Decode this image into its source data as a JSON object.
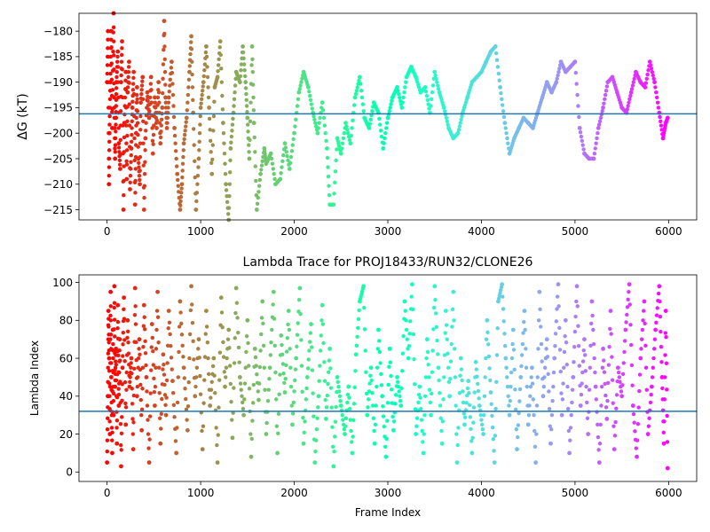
{
  "chart_data": [
    {
      "type": "scatter",
      "title": "",
      "xlabel": "",
      "ylabel": "ΔG (kT)",
      "xlim": [
        -300,
        6300
      ],
      "ylim": [
        -217,
        -176.5
      ],
      "xticks": [
        0,
        1000,
        2000,
        3000,
        4000,
        5000,
        6000
      ],
      "xtick_labels": [
        "0",
        "1000",
        "2000",
        "3000",
        "4000",
        "5000",
        "6000"
      ],
      "yticks": [
        -215,
        -210,
        -205,
        -200,
        -195,
        -190,
        -185,
        -180
      ],
      "ytick_labels": [
        "−215",
        "−210",
        "−205",
        "−200",
        "−195",
        "−190",
        "−185",
        "−180"
      ],
      "hline": -196.2,
      "hline_color": "#1f77b4",
      "colormap": "rainbow, reversed over frame index (red at frame 0, violet at frame 6000)",
      "points": [
        [
          0,
          -190
        ],
        [
          10,
          -180
        ],
        [
          20,
          -210
        ],
        [
          25,
          -200
        ],
        [
          35,
          -190
        ],
        [
          45,
          -180
        ],
        [
          55,
          -199
        ],
        [
          70,
          -176.5
        ],
        [
          75,
          -193
        ],
        [
          85,
          -205
        ],
        [
          95,
          -197
        ],
        [
          100,
          -190
        ],
        [
          115,
          -184
        ],
        [
          125,
          -202
        ],
        [
          140,
          -207
        ],
        [
          150,
          -190
        ],
        [
          160,
          -182
        ],
        [
          175,
          -215
        ],
        [
          185,
          -198
        ],
        [
          200,
          -188
        ],
        [
          210,
          -209
        ],
        [
          220,
          -192
        ],
        [
          235,
          -186
        ],
        [
          245,
          -211
        ],
        [
          260,
          -203
        ],
        [
          270,
          -195
        ],
        [
          285,
          -188
        ],
        [
          300,
          -214
        ],
        [
          310,
          -200
        ],
        [
          320,
          -191
        ],
        [
          335,
          -205
        ],
        [
          350,
          -210
        ],
        [
          360,
          -194
        ],
        [
          380,
          -189
        ],
        [
          395,
          -215
        ],
        [
          410,
          -201
        ],
        [
          430,
          -192
        ],
        [
          450,
          -197
        ],
        [
          470,
          -189
        ],
        [
          490,
          -204
        ],
        [
          510,
          -193
        ],
        [
          530,
          -199
        ],
        [
          550,
          -190
        ],
        [
          570,
          -202
        ],
        [
          590,
          -195
        ],
        [
          610,
          -178
        ],
        [
          625,
          -193
        ],
        [
          640,
          -199
        ],
        [
          660,
          -193
        ],
        [
          690,
          -186
        ],
        [
          720,
          -199
        ],
        [
          750,
          -208
        ],
        [
          780,
          -215
        ],
        [
          800,
          -210
        ],
        [
          820,
          -202
        ],
        [
          850,
          -197
        ],
        [
          880,
          -188
        ],
        [
          900,
          -181
        ],
        [
          920,
          -196
        ],
        [
          950,
          -215
        ],
        [
          980,
          -205
        ],
        [
          1000,
          -195
        ],
        [
          1030,
          -190
        ],
        [
          1060,
          -183
        ],
        [
          1090,
          -195
        ],
        [
          1120,
          -208
        ],
        [
          1150,
          -191
        ],
        [
          1180,
          -189
        ],
        [
          1210,
          -182
        ],
        [
          1240,
          -198
        ],
        [
          1270,
          -210
        ],
        [
          1300,
          -217
        ],
        [
          1320,
          -203
        ],
        [
          1350,
          -196
        ],
        [
          1380,
          -188
        ],
        [
          1420,
          -190
        ],
        [
          1450,
          -183
        ],
        [
          1480,
          -190
        ],
        [
          1500,
          -197
        ],
        [
          1520,
          -205
        ],
        [
          1550,
          -183
        ],
        [
          1570,
          -198
        ],
        [
          1600,
          -215
        ],
        [
          1640,
          -208
        ],
        [
          1680,
          -203
        ],
        [
          1700,
          -206
        ],
        [
          1750,
          -204
        ],
        [
          1800,
          -210
        ],
        [
          1850,
          -209
        ],
        [
          1900,
          -202
        ],
        [
          1950,
          -207
        ],
        [
          2000,
          -200
        ],
        [
          2050,
          -192
        ],
        [
          2100,
          -188
        ],
        [
          2150,
          -191
        ],
        [
          2200,
          -196
        ],
        [
          2250,
          -200
        ],
        [
          2300,
          -194
        ],
        [
          2350,
          -203
        ],
        [
          2380,
          -214
        ],
        [
          2420,
          -214
        ],
        [
          2460,
          -201
        ],
        [
          2500,
          -204
        ],
        [
          2550,
          -198
        ],
        [
          2600,
          -202
        ],
        [
          2650,
          -193
        ],
        [
          2700,
          -189
        ],
        [
          2750,
          -197
        ],
        [
          2800,
          -199
        ],
        [
          2850,
          -194
        ],
        [
          2900,
          -196
        ],
        [
          2950,
          -203
        ],
        [
          3000,
          -197
        ],
        [
          3050,
          -193
        ],
        [
          3100,
          -191
        ],
        [
          3150,
          -195
        ],
        [
          3200,
          -189
        ],
        [
          3250,
          -187
        ],
        [
          3300,
          -189
        ],
        [
          3350,
          -192
        ],
        [
          3400,
          -191
        ],
        [
          3450,
          -196
        ],
        [
          3500,
          -188
        ],
        [
          3550,
          -192
        ],
        [
          3600,
          -195
        ],
        [
          3650,
          -199
        ],
        [
          3700,
          -201
        ],
        [
          3750,
          -200
        ],
        [
          3800,
          -196
        ],
        [
          3850,
          -193
        ],
        [
          3900,
          -190
        ],
        [
          3950,
          -189
        ],
        [
          4000,
          -188
        ],
        [
          4050,
          -186
        ],
        [
          4100,
          -184
        ],
        [
          4150,
          -183
        ],
        [
          4200,
          -191
        ],
        [
          4250,
          -198
        ],
        [
          4300,
          -204
        ],
        [
          4350,
          -201
        ],
        [
          4400,
          -199
        ],
        [
          4450,
          -197
        ],
        [
          4500,
          -198
        ],
        [
          4550,
          -199
        ],
        [
          4600,
          -196
        ],
        [
          4650,
          -193
        ],
        [
          4700,
          -190
        ],
        [
          4750,
          -192
        ],
        [
          4800,
          -190
        ],
        [
          4850,
          -186
        ],
        [
          4900,
          -188
        ],
        [
          4950,
          -187
        ],
        [
          5000,
          -186
        ],
        [
          5050,
          -199
        ],
        [
          5100,
          -204
        ],
        [
          5150,
          -205
        ],
        [
          5200,
          -205
        ],
        [
          5250,
          -199
        ],
        [
          5300,
          -195
        ],
        [
          5350,
          -190
        ],
        [
          5400,
          -189
        ],
        [
          5450,
          -192
        ],
        [
          5500,
          -195
        ],
        [
          5550,
          -196
        ],
        [
          5600,
          -192
        ],
        [
          5650,
          -188
        ],
        [
          5700,
          -190
        ],
        [
          5750,
          -191
        ],
        [
          5800,
          -186
        ],
        [
          5850,
          -190
        ],
        [
          5900,
          -196
        ],
        [
          5940,
          -201
        ],
        [
          5970,
          -198
        ],
        [
          5990,
          -197
        ]
      ]
    },
    {
      "type": "scatter",
      "title": "Lambda Trace for PROJ18433/RUN32/CLONE26",
      "xlabel": "Frame Index",
      "ylabel": "Lambda Index",
      "xlim": [
        -300,
        6300
      ],
      "ylim": [
        -5,
        104
      ],
      "xticks": [
        0,
        1000,
        2000,
        3000,
        4000,
        5000,
        6000
      ],
      "xtick_labels": [
        "0",
        "1000",
        "2000",
        "3000",
        "4000",
        "5000",
        "6000"
      ],
      "yticks": [
        0,
        20,
        40,
        60,
        80,
        100
      ],
      "ytick_labels": [
        "0",
        "20",
        "40",
        "60",
        "80",
        "100"
      ],
      "hline": 32,
      "hline_color": "#1f77b4",
      "colormap": "rainbow, reversed over frame index (red at frame 0, violet at frame 6000)",
      "points": [
        [
          0,
          5
        ],
        [
          8,
          40
        ],
        [
          15,
          85
        ],
        [
          22,
          60
        ],
        [
          30,
          20
        ],
        [
          38,
          95
        ],
        [
          45,
          50
        ],
        [
          55,
          10
        ],
        [
          62,
          75
        ],
        [
          70,
          30
        ],
        [
          78,
          98
        ],
        [
          85,
          45
        ],
        [
          95,
          65
        ],
        [
          105,
          15
        ],
        [
          115,
          88
        ],
        [
          125,
          35
        ],
        [
          135,
          70
        ],
        [
          150,
          3
        ],
        [
          165,
          55
        ],
        [
          180,
          92
        ],
        [
          200,
          25
        ],
        [
          220,
          80
        ],
        [
          240,
          45
        ],
        [
          260,
          60
        ],
        [
          280,
          12
        ],
        [
          300,
          97
        ],
        [
          320,
          40
        ],
        [
          345,
          70
        ],
        [
          370,
          22
        ],
        [
          395,
          88
        ],
        [
          420,
          50
        ],
        [
          450,
          5
        ],
        [
          480,
          78
        ],
        [
          510,
          35
        ],
        [
          540,
          95
        ],
        [
          570,
          15
        ],
        [
          600,
          62
        ],
        [
          630,
          30
        ],
        [
          660,
          85
        ],
        [
          700,
          48
        ],
        [
          740,
          10
        ],
        [
          780,
          90
        ],
        [
          820,
          55
        ],
        [
          860,
          22
        ],
        [
          900,
          98
        ],
        [
          940,
          40
        ],
        [
          980,
          70
        ],
        [
          1020,
          12
        ],
        [
          1060,
          85
        ],
        [
          1100,
          35
        ],
        [
          1140,
          60
        ],
        [
          1180,
          5
        ],
        [
          1220,
          92
        ],
        [
          1260,
          45
        ],
        [
          1300,
          75
        ],
        [
          1340,
          18
        ],
        [
          1380,
          97
        ],
        [
          1420,
          50
        ],
        [
          1460,
          30
        ],
        [
          1500,
          80
        ],
        [
          1540,
          8
        ],
        [
          1580,
          65
        ],
        [
          1620,
          38
        ],
        [
          1660,
          90
        ],
        [
          1700,
          20
        ],
        [
          1740,
          55
        ],
        [
          1780,
          95
        ],
        [
          1820,
          10
        ],
        [
          1860,
          72
        ],
        [
          1900,
          42
        ],
        [
          1940,
          85
        ],
        [
          1980,
          25
        ],
        [
          2020,
          60
        ],
        [
          2060,
          97
        ],
        [
          2100,
          15
        ],
        [
          2140,
          50
        ],
        [
          2180,
          78
        ],
        [
          2220,
          5
        ],
        [
          2260,
          40
        ],
        [
          2300,
          88
        ],
        [
          2340,
          28
        ],
        [
          2380,
          65
        ],
        [
          2420,
          3
        ],
        [
          2460,
          50
        ],
        [
          2500,
          35
        ],
        [
          2540,
          20
        ],
        [
          2580,
          45
        ],
        [
          2620,
          10
        ],
        [
          2660,
          62
        ],
        [
          2700,
          90
        ],
        [
          2740,
          98
        ],
        [
          2780,
          30
        ],
        [
          2820,
          55
        ],
        [
          2860,
          15
        ],
        [
          2900,
          75
        ],
        [
          2940,
          40
        ],
        [
          2980,
          8
        ],
        [
          3020,
          65
        ],
        [
          3060,
          22
        ],
        [
          3100,
          50
        ],
        [
          3140,
          35
        ],
        [
          3180,
          90
        ],
        [
          3220,
          60
        ],
        [
          3260,
          99
        ],
        [
          3300,
          20
        ],
        [
          3340,
          45
        ],
        [
          3380,
          10
        ],
        [
          3420,
          70
        ],
        [
          3460,
          30
        ],
        [
          3500,
          98
        ],
        [
          3540,
          55
        ],
        [
          3580,
          15
        ],
        [
          3620,
          85
        ],
        [
          3660,
          40
        ],
        [
          3700,
          95
        ],
        [
          3740,
          5
        ],
        [
          3780,
          60
        ],
        [
          3820,
          25
        ],
        [
          3860,
          48
        ],
        [
          3900,
          10
        ],
        [
          3940,
          58
        ],
        [
          3980,
          35
        ],
        [
          4020,
          20
        ],
        [
          4060,
          80
        ],
        [
          4100,
          42
        ],
        [
          4140,
          5
        ],
        [
          4180,
          90
        ],
        [
          4220,
          99
        ],
        [
          4260,
          60
        ],
        [
          4300,
          30
        ],
        [
          4340,
          75
        ],
        [
          4380,
          12
        ],
        [
          4420,
          50
        ],
        [
          4460,
          85
        ],
        [
          4500,
          25
        ],
        [
          4540,
          55
        ],
        [
          4580,
          5
        ],
        [
          4620,
          95
        ],
        [
          4660,
          40
        ],
        [
          4700,
          70
        ],
        [
          4740,
          15
        ],
        [
          4780,
          60
        ],
        [
          4820,
          99
        ],
        [
          4860,
          30
        ],
        [
          4900,
          80
        ],
        [
          4940,
          10
        ],
        [
          4980,
          50
        ],
        [
          5020,
          98
        ],
        [
          5060,
          35
        ],
        [
          5100,
          70
        ],
        [
          5140,
          20
        ],
        [
          5180,
          90
        ],
        [
          5220,
          45
        ],
        [
          5260,
          5
        ],
        [
          5300,
          65
        ],
        [
          5340,
          28
        ],
        [
          5380,
          85
        ],
        [
          5420,
          12
        ],
        [
          5460,
          55
        ],
        [
          5500,
          40
        ],
        [
          5540,
          75
        ],
        [
          5580,
          99
        ],
        [
          5620,
          35
        ],
        [
          5660,
          8
        ],
        [
          5700,
          60
        ],
        [
          5740,
          90
        ],
        [
          5780,
          20
        ],
        [
          5820,
          45
        ],
        [
          5860,
          75
        ],
        [
          5900,
          98
        ],
        [
          5930,
          50
        ],
        [
          5950,
          15
        ],
        [
          5970,
          85
        ],
        [
          5990,
          2
        ]
      ]
    }
  ]
}
